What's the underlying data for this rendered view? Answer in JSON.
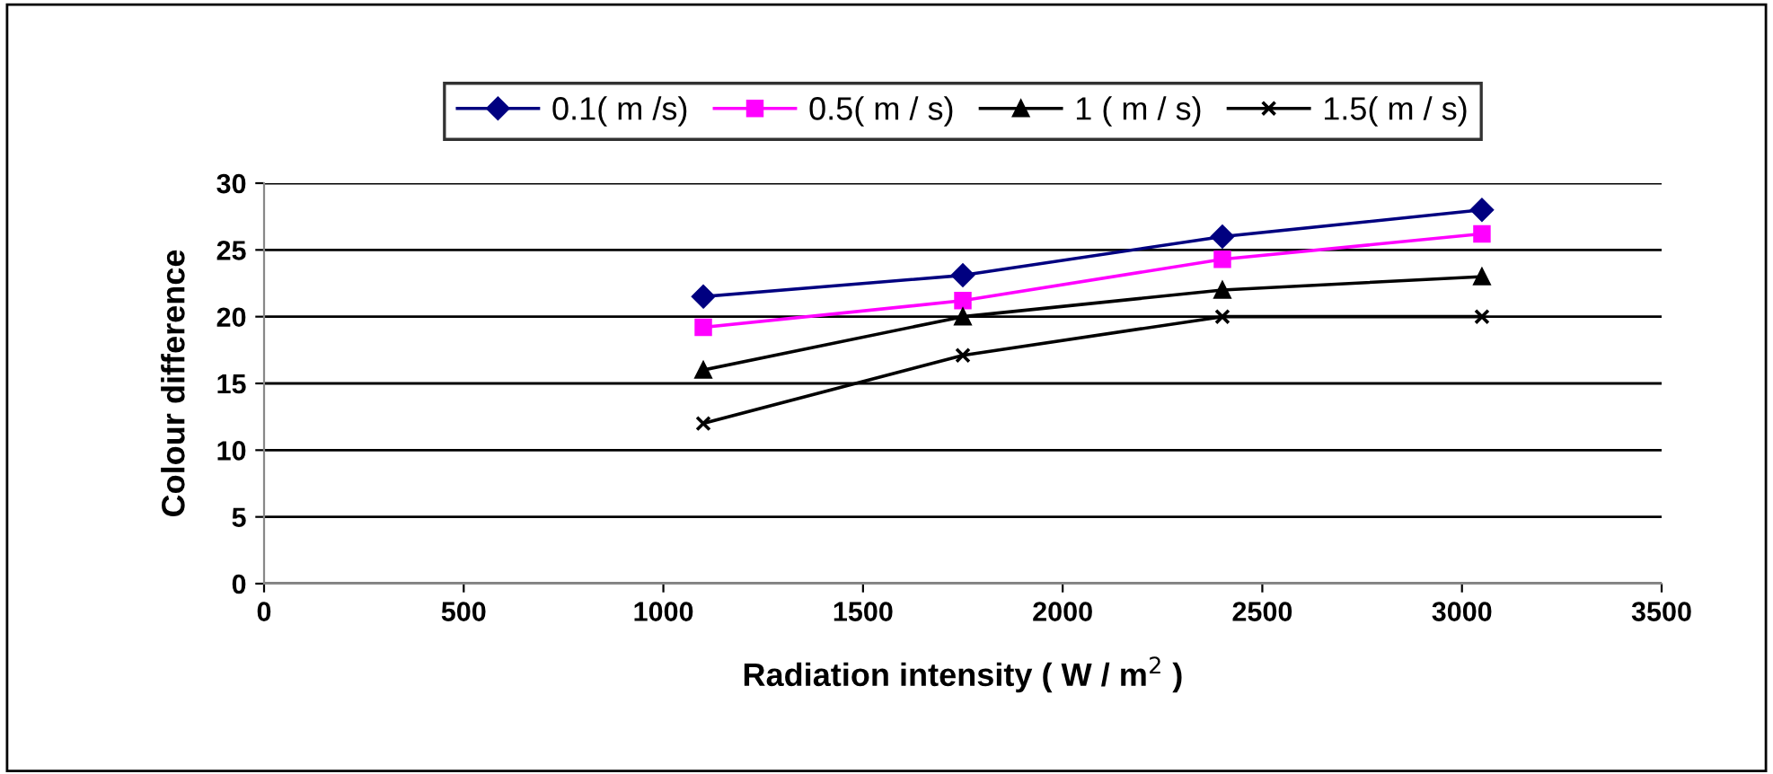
{
  "chart_data": {
    "type": "line",
    "xlabel": "Radiation intensity ( W / m$^{2}$ )",
    "ylabel": "Colour difference",
    "x": [
      1100,
      1750,
      2400,
      3050
    ],
    "series": [
      {
        "name": "0.1( m /s)",
        "color": "#000080",
        "marker": "diamond",
        "values": [
          21.5,
          23.1,
          26,
          28
        ]
      },
      {
        "name": "0.5( m / s)",
        "color": "#ff00ff",
        "marker": "square",
        "values": [
          19.2,
          21.2,
          24.3,
          26.2
        ]
      },
      {
        "name": "1 ( m / s)",
        "color": "#000000",
        "marker": "triangle",
        "values": [
          16,
          20,
          22,
          23
        ]
      },
      {
        "name": "1.5( m / s)",
        "color": "#000000",
        "marker": "cross",
        "values": [
          12,
          17.1,
          20,
          20
        ]
      }
    ],
    "xlim": [
      0,
      3500
    ],
    "xticks": [
      0,
      500,
      1000,
      1500,
      2000,
      2500,
      3000,
      3500
    ],
    "ylim": [
      0,
      30
    ],
    "yticks": [
      0,
      5,
      10,
      15,
      20,
      25,
      30
    ],
    "grid": "y",
    "legend": "top",
    "line_style": "solid"
  }
}
